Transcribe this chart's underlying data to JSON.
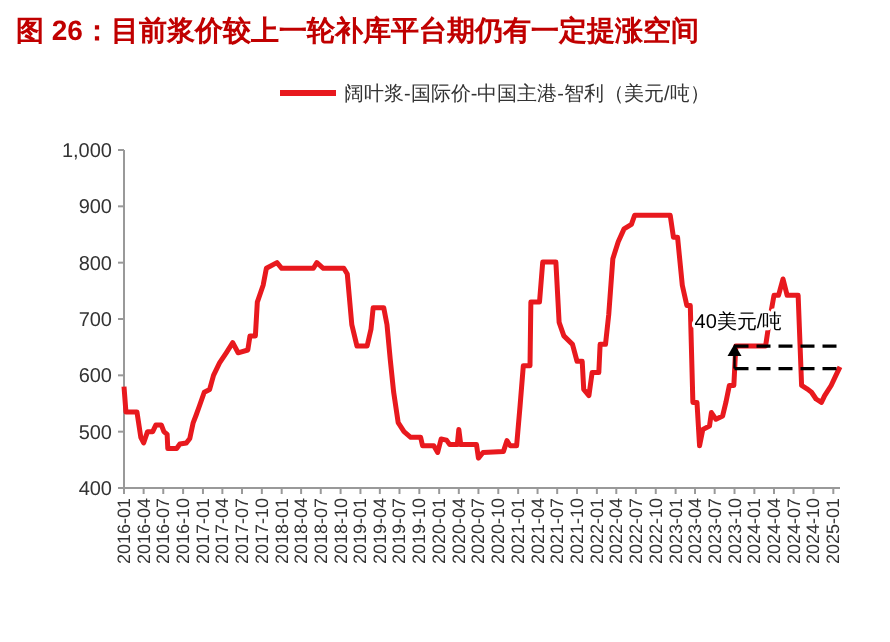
{
  "chart_data": {
    "type": "line",
    "title": "图 26：目前浆价较上一轮补库平台期仍有一定提涨空间",
    "legend": "top",
    "xlim": [
      "2016-01",
      "2025-02"
    ],
    "xticks": [
      "2016-01",
      "2016-04",
      "2016-07",
      "2016-10",
      "2017-01",
      "2017-04",
      "2017-07",
      "2017-10",
      "2018-01",
      "2018-04",
      "2018-07",
      "2018-10",
      "2019-01",
      "2019-04",
      "2019-07",
      "2019-10",
      "2020-01",
      "2020-04",
      "2020-07",
      "2020-10",
      "2021-01",
      "2021-04",
      "2021-07",
      "2021-10",
      "2022-01",
      "2022-04",
      "2022-07",
      "2022-10",
      "2023-01",
      "2023-04",
      "2023-07",
      "2023-10",
      "2024-01",
      "2024-04",
      "2024-07",
      "2024-10",
      "2025-01"
    ],
    "ylim": [
      400,
      1000
    ],
    "yticks": [
      400,
      500,
      600,
      700,
      800,
      900,
      {
        "value": 1000,
        "label": "1,000"
      }
    ],
    "annotations": [
      {
        "text": "40美元/吨",
        "x": "2023-10",
        "y": 652
      }
    ],
    "series": [
      {
        "name": "阔叶浆-国际价-中国主港-智利（美元/吨）",
        "color": "#e8191e",
        "line_style": "solid",
        "x": [
          "2016-01-01",
          "2016-01-10",
          "2016-03-01",
          "2016-03-19",
          "2016-04-01",
          "2016-04-19",
          "2016-05-13",
          "2016-05-28",
          "2016-06-22",
          "2016-07-04",
          "2016-07-19",
          "2016-07-22",
          "2016-09-01",
          "2016-09-16",
          "2016-10-16",
          "2016-11-01",
          "2016-11-16",
          "2016-12-01",
          "2016-12-16",
          "2017-01-07",
          "2017-02-01",
          "2017-02-19",
          "2017-03-19",
          "2017-04-19",
          "2017-05-19",
          "2017-06-13",
          "2017-07-28",
          "2017-08-07",
          "2017-09-01",
          "2017-09-10",
          "2017-10-07",
          "2017-10-22",
          "2017-12-10",
          "2018-01-01",
          "2018-05-28",
          "2018-06-13",
          "2018-07-13",
          "2018-10-16",
          "2018-11-01",
          "2018-11-22",
          "2018-12-16",
          "2019-02-01",
          "2019-02-19",
          "2019-03-01",
          "2019-04-19",
          "2019-05-04",
          "2019-05-19",
          "2019-06-04",
          "2019-06-25",
          "2019-07-22",
          "2019-08-22",
          "2019-10-07",
          "2019-10-16",
          "2019-12-07",
          "2019-12-25",
          "2020-01-10",
          "2020-02-04",
          "2020-02-19",
          "2020-03-25",
          "2020-04-01",
          "2020-04-10",
          "2020-06-22",
          "2020-07-01",
          "2020-07-22",
          "2020-10-25",
          "2020-11-10",
          "2020-11-25",
          "2020-12-25",
          "2021-01-10",
          "2021-01-25",
          "2021-02-25",
          "2021-03-01",
          "2021-04-10",
          "2021-04-25",
          "2021-06-25",
          "2021-07-10",
          "2021-08-01",
          "2021-09-10",
          "2021-10-01",
          "2021-10-25",
          "2021-11-01",
          "2021-11-25",
          "2021-12-10",
          "2022-01-10",
          "2022-01-16",
          "2022-02-10",
          "2022-02-25",
          "2022-03-16",
          "2022-04-10",
          "2022-05-07",
          "2022-06-10",
          "2022-06-25",
          "2022-12-07",
          "2022-12-22",
          "2023-01-10",
          "2023-02-01",
          "2023-02-22",
          "2023-03-10",
          "2023-03-22",
          "2023-04-10",
          "2023-04-22",
          "2023-05-07",
          "2023-06-07",
          "2023-06-16",
          "2023-07-07",
          "2023-08-07",
          "2023-08-22",
          "2023-09-07",
          "2023-09-28",
          "2023-10-07",
          "2024-02-22",
          "2024-03-07",
          "2024-04-01",
          "2024-04-22",
          "2024-05-13",
          "2024-06-01",
          "2024-07-22",
          "2024-08-07",
          "2024-09-01",
          "2024-09-22",
          "2024-10-13",
          "2024-11-07",
          "2024-11-22",
          "2024-12-22",
          "2025-01-13",
          "2025-02-01"
        ],
        "values": [
          580,
          535,
          535,
          490,
          480,
          500,
          500,
          512,
          512,
          500,
          495,
          470,
          470,
          478,
          480,
          488,
          515,
          530,
          546,
          570,
          575,
          600,
          622,
          640,
          658,
          640,
          645,
          670,
          670,
          730,
          760,
          790,
          800,
          790,
          790,
          800,
          790,
          790,
          780,
          690,
          652,
          652,
          682,
          720,
          720,
          690,
          629,
          570,
          516,
          500,
          490,
          490,
          475,
          475,
          463,
          487,
          485,
          477,
          477,
          504,
          477,
          477,
          453,
          463,
          465,
          484,
          475,
          475,
          546,
          617,
          617,
          730,
          730,
          801,
          801,
          694,
          670,
          655,
          625,
          625,
          575,
          564,
          605,
          605,
          655,
          655,
          708,
          807,
          837,
          860,
          868,
          884,
          884,
          845,
          845,
          760,
          724,
          724,
          552,
          552,
          475,
          504,
          510,
          534,
          522,
          528,
          552,
          582,
          582,
          652,
          652,
          688,
          742,
          742,
          771,
          742,
          742,
          582,
          576,
          570,
          558,
          552,
          564,
          582,
          600,
          615
        ]
      },
      {
        "color": "#000000",
        "line_style": "dashed",
        "x": [
          "2023-10-01",
          "2025-02-01"
        ],
        "values": [
          652,
          652
        ]
      },
      {
        "color": "#000000",
        "line_style": "dashed",
        "x": [
          "2023-10-01",
          "2025-02-01"
        ],
        "values": [
          612,
          612
        ]
      }
    ]
  }
}
